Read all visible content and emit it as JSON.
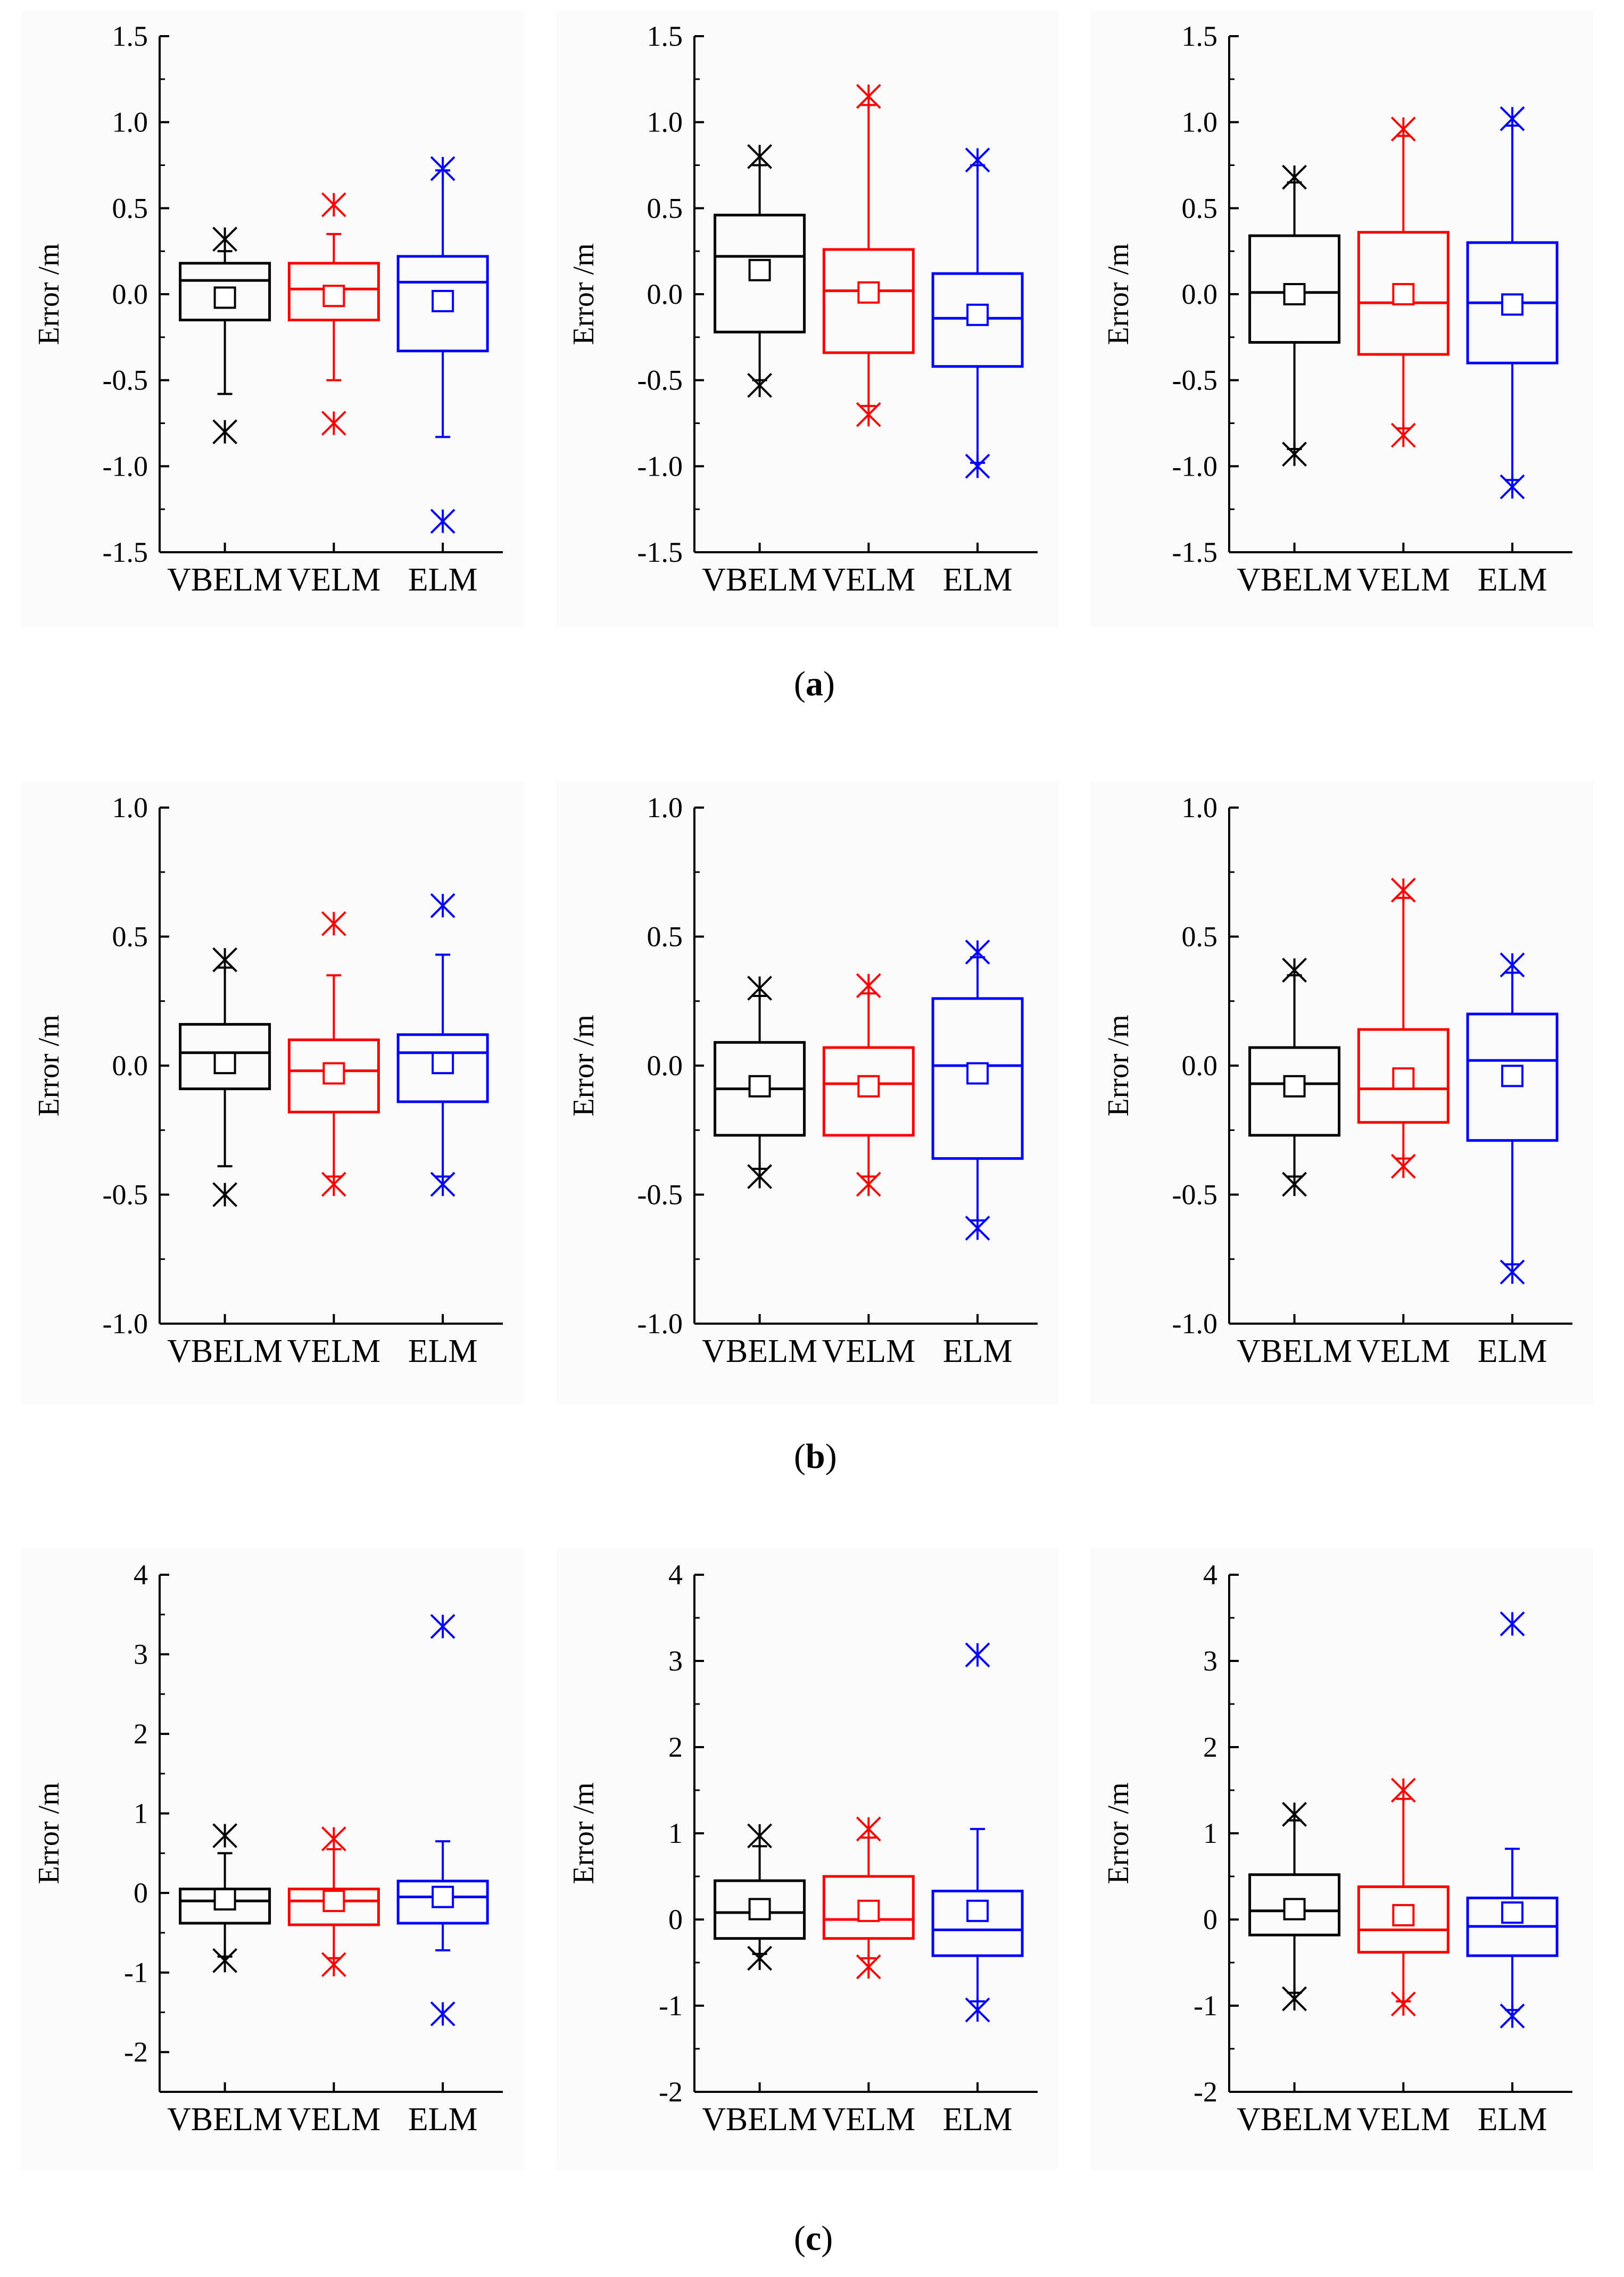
{
  "captions": [
    "a",
    "b",
    "c"
  ],
  "colors": {
    "VBELM": "#000000",
    "VELM": "#ff0000",
    "ELM": "#0000ff"
  },
  "chart_data": [
    {
      "type": "box",
      "group": "a",
      "position": 1,
      "ylabel": "Error /m",
      "ylim": [
        -1.5,
        1.5
      ],
      "yticks": [
        "-1.5",
        "-1.0",
        "-0.5",
        "0.0",
        "0.5",
        "1.0",
        "1.5"
      ],
      "categories": [
        "VBELM",
        "VELM",
        "ELM"
      ],
      "boxes": [
        {
          "q1": -0.15,
          "median": 0.08,
          "q3": 0.18,
          "whisker_low": -0.58,
          "whisker_high": 0.25,
          "mean": -0.02,
          "min": -0.8,
          "max": 0.32
        },
        {
          "q1": -0.15,
          "median": 0.03,
          "q3": 0.18,
          "whisker_low": -0.5,
          "whisker_high": 0.35,
          "mean": -0.01,
          "min": -0.75,
          "max": 0.52
        },
        {
          "q1": -0.33,
          "median": 0.07,
          "q3": 0.22,
          "whisker_low": -0.83,
          "whisker_high": 0.72,
          "mean": -0.04,
          "min": -1.32,
          "max": 0.73
        }
      ]
    },
    {
      "type": "box",
      "group": "a",
      "position": 2,
      "ylabel": "Error /m",
      "ylim": [
        -1.5,
        1.5
      ],
      "yticks": [
        "-1.5",
        "-1.0",
        "-0.5",
        "0.0",
        "0.5",
        "1.0",
        "1.5"
      ],
      "categories": [
        "VBELM",
        "VELM",
        "ELM"
      ],
      "boxes": [
        {
          "q1": -0.22,
          "median": 0.22,
          "q3": 0.46,
          "whisker_low": -0.5,
          "whisker_high": 0.75,
          "mean": 0.14,
          "min": -0.53,
          "max": 0.8
        },
        {
          "q1": -0.34,
          "median": 0.02,
          "q3": 0.26,
          "whisker_low": -0.65,
          "whisker_high": 1.1,
          "mean": 0.01,
          "min": -0.7,
          "max": 1.15
        },
        {
          "q1": -0.42,
          "median": -0.14,
          "q3": 0.12,
          "whisker_low": -0.98,
          "whisker_high": 0.75,
          "mean": -0.12,
          "min": -1.0,
          "max": 0.78
        }
      ]
    },
    {
      "type": "box",
      "group": "a",
      "position": 3,
      "ylabel": "Error /m",
      "ylim": [
        -1.5,
        1.5
      ],
      "yticks": [
        "-1.5",
        "-1.0",
        "-0.5",
        "0.0",
        "0.5",
        "1.0",
        "1.5"
      ],
      "categories": [
        "VBELM",
        "VELM",
        "ELM"
      ],
      "boxes": [
        {
          "q1": -0.28,
          "median": 0.01,
          "q3": 0.34,
          "whisker_low": -0.9,
          "whisker_high": 0.65,
          "mean": 0.0,
          "min": -0.93,
          "max": 0.68
        },
        {
          "q1": -0.35,
          "median": -0.05,
          "q3": 0.36,
          "whisker_low": -0.78,
          "whisker_high": 0.92,
          "mean": 0.0,
          "min": -0.82,
          "max": 0.96
        },
        {
          "q1": -0.4,
          "median": -0.05,
          "q3": 0.3,
          "whisker_low": -1.08,
          "whisker_high": 0.98,
          "mean": -0.06,
          "min": -1.12,
          "max": 1.02
        }
      ]
    },
    {
      "type": "box",
      "group": "b",
      "position": 1,
      "ylabel": "Error /m",
      "ylim": [
        -1.0,
        1.0
      ],
      "yticks": [
        "-1.0",
        "-0.5",
        "0.0",
        "0.5",
        "1.0"
      ],
      "categories": [
        "VBELM",
        "VELM",
        "ELM"
      ],
      "boxes": [
        {
          "q1": -0.09,
          "median": 0.05,
          "q3": 0.16,
          "whisker_low": -0.39,
          "whisker_high": 0.38,
          "mean": 0.01,
          "min": -0.5,
          "max": 0.41
        },
        {
          "q1": -0.18,
          "median": -0.02,
          "q3": 0.1,
          "whisker_low": -0.43,
          "whisker_high": 0.35,
          "mean": -0.03,
          "min": -0.46,
          "max": 0.55
        },
        {
          "q1": -0.14,
          "median": 0.05,
          "q3": 0.12,
          "whisker_low": -0.43,
          "whisker_high": 0.43,
          "mean": 0.01,
          "min": -0.46,
          "max": 0.62
        }
      ]
    },
    {
      "type": "box",
      "group": "b",
      "position": 2,
      "ylabel": "Error /m",
      "ylim": [
        -1.0,
        1.0
      ],
      "yticks": [
        "-1.0",
        "-0.5",
        "0.0",
        "0.5",
        "1.0"
      ],
      "categories": [
        "VBELM",
        "VELM",
        "ELM"
      ],
      "boxes": [
        {
          "q1": -0.27,
          "median": -0.09,
          "q3": 0.09,
          "whisker_low": -0.4,
          "whisker_high": 0.27,
          "mean": -0.08,
          "min": -0.43,
          "max": 0.3
        },
        {
          "q1": -0.27,
          "median": -0.07,
          "q3": 0.07,
          "whisker_low": -0.43,
          "whisker_high": 0.28,
          "mean": -0.08,
          "min": -0.46,
          "max": 0.31
        },
        {
          "q1": -0.36,
          "median": 0.0,
          "q3": 0.26,
          "whisker_low": -0.6,
          "whisker_high": 0.42,
          "mean": -0.03,
          "min": -0.63,
          "max": 0.44
        }
      ]
    },
    {
      "type": "box",
      "group": "b",
      "position": 3,
      "ylabel": "Error /m",
      "ylim": [
        -1.0,
        1.0
      ],
      "yticks": [
        "-1.0",
        "-0.5",
        "0.0",
        "0.5",
        "1.0"
      ],
      "categories": [
        "VBELM",
        "VELM",
        "ELM"
      ],
      "boxes": [
        {
          "q1": -0.27,
          "median": -0.07,
          "q3": 0.07,
          "whisker_low": -0.43,
          "whisker_high": 0.35,
          "mean": -0.08,
          "min": -0.46,
          "max": 0.37
        },
        {
          "q1": -0.22,
          "median": -0.09,
          "q3": 0.14,
          "whisker_low": -0.36,
          "whisker_high": 0.65,
          "mean": -0.05,
          "min": -0.39,
          "max": 0.68
        },
        {
          "q1": -0.29,
          "median": 0.02,
          "q3": 0.2,
          "whisker_low": -0.77,
          "whisker_high": 0.36,
          "mean": -0.04,
          "min": -0.8,
          "max": 0.39
        }
      ]
    },
    {
      "type": "box",
      "group": "c",
      "position": 1,
      "ylabel": "Error /m",
      "ylim": [
        -2.5,
        4.0
      ],
      "yticks": [
        "-2",
        "-1",
        "0",
        "1",
        "2",
        "3",
        "4"
      ],
      "categories": [
        "VBELM",
        "VELM",
        "ELM"
      ],
      "boxes": [
        {
          "q1": -0.38,
          "median": -0.1,
          "q3": 0.05,
          "whisker_low": -0.8,
          "whisker_high": 0.5,
          "mean": -0.08,
          "min": -0.85,
          "max": 0.72
        },
        {
          "q1": -0.4,
          "median": -0.1,
          "q3": 0.05,
          "whisker_low": -0.82,
          "whisker_high": 0.55,
          "mean": -0.1,
          "min": -0.9,
          "max": 0.68
        },
        {
          "q1": -0.38,
          "median": -0.05,
          "q3": 0.15,
          "whisker_low": -0.72,
          "whisker_high": 0.65,
          "mean": -0.05,
          "min": -1.52,
          "max": 3.35
        }
      ]
    },
    {
      "type": "box",
      "group": "c",
      "position": 2,
      "ylabel": "Error /m",
      "ylim": [
        -2.0,
        4.0
      ],
      "yticks": [
        "-2",
        "-1",
        "0",
        "1",
        "2",
        "3",
        "4"
      ],
      "categories": [
        "VBELM",
        "VELM",
        "ELM"
      ],
      "boxes": [
        {
          "q1": -0.22,
          "median": 0.08,
          "q3": 0.45,
          "whisker_low": -0.4,
          "whisker_high": 0.85,
          "mean": 0.12,
          "min": -0.45,
          "max": 0.97
        },
        {
          "q1": -0.22,
          "median": 0.0,
          "q3": 0.5,
          "whisker_low": -0.45,
          "whisker_high": 0.95,
          "mean": 0.1,
          "min": -0.55,
          "max": 1.05
        },
        {
          "q1": -0.42,
          "median": -0.12,
          "q3": 0.33,
          "whisker_low": -0.95,
          "whisker_high": 1.05,
          "mean": 0.1,
          "min": -1.05,
          "max": 3.07
        }
      ]
    },
    {
      "type": "box",
      "group": "c",
      "position": 3,
      "ylabel": "Error /m",
      "ylim": [
        -2.0,
        4.0
      ],
      "yticks": [
        "-2",
        "-1",
        "0",
        "1",
        "2",
        "3",
        "4"
      ],
      "categories": [
        "VBELM",
        "VELM",
        "ELM"
      ],
      "boxes": [
        {
          "q1": -0.18,
          "median": 0.1,
          "q3": 0.52,
          "whisker_low": -0.85,
          "whisker_high": 1.15,
          "mean": 0.12,
          "min": -0.92,
          "max": 1.22
        },
        {
          "q1": -0.38,
          "median": -0.12,
          "q3": 0.38,
          "whisker_low": -0.95,
          "whisker_high": 1.4,
          "mean": 0.05,
          "min": -0.98,
          "max": 1.5
        },
        {
          "q1": -0.42,
          "median": -0.08,
          "q3": 0.25,
          "whisker_low": -1.05,
          "whisker_high": 0.82,
          "mean": 0.08,
          "min": -1.12,
          "max": 3.43
        }
      ]
    }
  ]
}
